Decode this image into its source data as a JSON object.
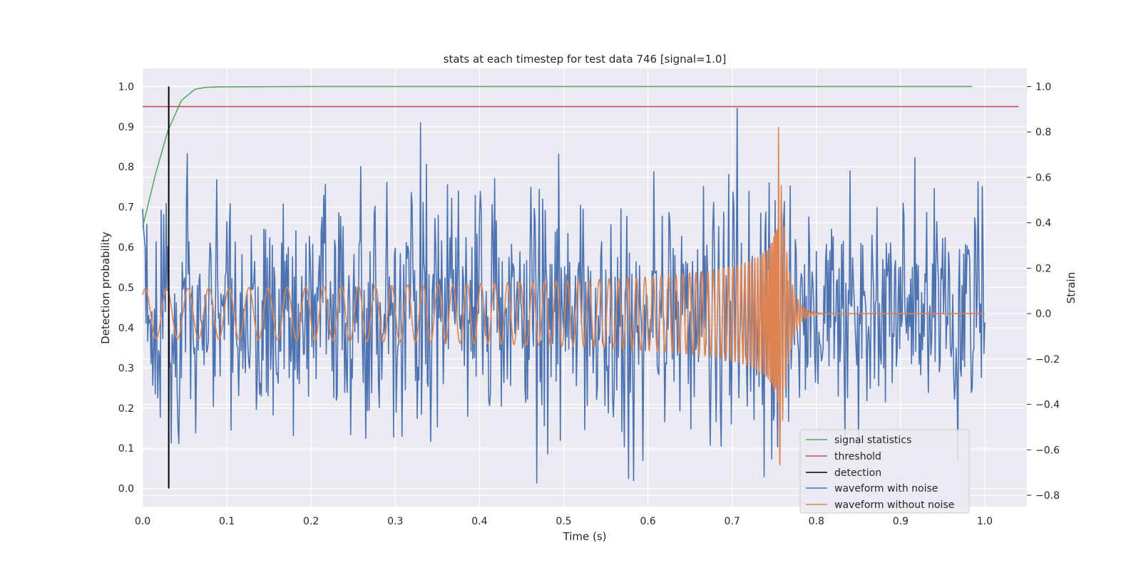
{
  "chart_data": {
    "type": "line",
    "title": "stats at each timestep for test data 746 [signal=1.0]",
    "xlabel": "Time (s)",
    "ylabel_left": "Detection probability",
    "ylabel_right": "Strain",
    "xlim": [
      0.0,
      1.05
    ],
    "ylim_left": [
      -0.045,
      1.045
    ],
    "ylim_right": [
      -0.85,
      1.08
    ],
    "x_ticks": [
      "0.0",
      "0.1",
      "0.2",
      "0.3",
      "0.4",
      "0.5",
      "0.6",
      "0.7",
      "0.8",
      "0.9",
      "1.0"
    ],
    "y_ticks_left": [
      "0.0",
      "0.1",
      "0.2",
      "0.3",
      "0.4",
      "0.5",
      "0.6",
      "0.7",
      "0.8",
      "0.9",
      "1.0"
    ],
    "y_ticks_right": [
      "−0.8",
      "−0.6",
      "−0.4",
      "−0.2",
      "0.0",
      "0.2",
      "0.4",
      "0.6",
      "0.8",
      "1.0"
    ],
    "grid": true,
    "legend_position": "lower-right",
    "colors": {
      "background": "#eaeaf2",
      "grid": "#ffffff",
      "signal_statistics": "#55a868",
      "threshold": "#c44e52",
      "detection": "#000000",
      "waveform_with_noise": "#4c72b0",
      "waveform_without_noise": "#dd8452"
    },
    "legend": [
      "signal statistics",
      "threshold",
      "detection",
      "waveform with noise",
      "waveform without noise"
    ],
    "signal_statistics": {
      "axis": "left",
      "x": [
        0.0,
        0.015,
        0.03,
        0.046,
        0.062,
        0.075,
        0.09,
        0.2,
        0.4,
        0.6,
        0.8,
        0.985
      ],
      "y": [
        0.65,
        0.78,
        0.89,
        0.965,
        0.993,
        0.998,
        0.999,
        1.0,
        1.0,
        1.0,
        1.0,
        1.0
      ]
    },
    "threshold": {
      "axis": "left",
      "x": [
        0.0,
        1.04
      ],
      "y": [
        0.95,
        0.95
      ]
    },
    "detection": {
      "axis": "left",
      "x": [
        0.031,
        0.031
      ],
      "y": [
        0.0,
        1.0
      ]
    },
    "waveform_with_noise": {
      "axis": "right",
      "x_start": 0.0,
      "x_end": 1.0,
      "noise_amplitude": 0.26,
      "values_approx": "dense noisy signal around 0 with peaks near 0.75 s (max ~1.0, min ~-0.75)"
    },
    "waveform_without_noise": {
      "axis": "right",
      "x_start": 0.0,
      "x_end": 1.0,
      "merger_time": 0.755,
      "initial_amplitude": 0.11,
      "peak_amplitude": 0.82,
      "min_value": -0.62,
      "ringdown_end": 0.8,
      "post_merger_value": 0.0
    }
  }
}
